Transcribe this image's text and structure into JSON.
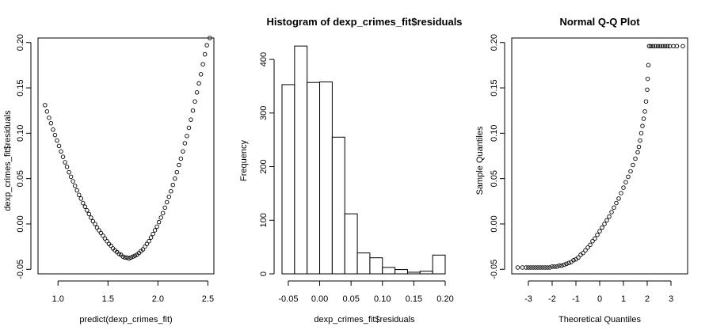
{
  "chart_data": [
    {
      "type": "scatter",
      "title": "",
      "xlabel": "predict(dexp_crimes_fit)",
      "ylabel": "dexp_crimes_fit$residuals",
      "xlim": [
        0.8,
        2.56
      ],
      "ylim": [
        -0.055,
        0.205
      ],
      "x_ticks": [
        1.0,
        1.5,
        2.0,
        2.5
      ],
      "x_tick_labels": [
        "1.0",
        "1.5",
        "2.0",
        "2.5"
      ],
      "y_ticks": [
        -0.05,
        0.0,
        0.05,
        0.1,
        0.15,
        0.2
      ],
      "y_tick_labels": [
        "-0.05",
        "0.00",
        "0.05",
        "0.10",
        "0.15",
        "0.20"
      ],
      "points": [
        [
          0.87,
          0.131
        ],
        [
          0.89,
          0.124
        ],
        [
          0.91,
          0.117
        ],
        [
          0.93,
          0.111
        ],
        [
          0.95,
          0.104
        ],
        [
          0.97,
          0.098
        ],
        [
          0.99,
          0.092
        ],
        [
          1.01,
          0.086
        ],
        [
          1.03,
          0.08
        ],
        [
          1.05,
          0.074
        ],
        [
          1.07,
          0.068
        ],
        [
          1.09,
          0.063
        ],
        [
          1.11,
          0.057
        ],
        [
          1.13,
          0.052
        ],
        [
          1.15,
          0.047
        ],
        [
          1.17,
          0.042
        ],
        [
          1.19,
          0.037
        ],
        [
          1.21,
          0.032
        ],
        [
          1.23,
          0.028
        ],
        [
          1.25,
          0.023
        ],
        [
          1.27,
          0.019
        ],
        [
          1.29,
          0.015
        ],
        [
          1.31,
          0.011
        ],
        [
          1.33,
          0.007
        ],
        [
          1.35,
          0.003
        ],
        [
          1.37,
          0.0
        ],
        [
          1.39,
          -0.004
        ],
        [
          1.41,
          -0.007
        ],
        [
          1.43,
          -0.01
        ],
        [
          1.45,
          -0.013
        ],
        [
          1.47,
          -0.016
        ],
        [
          1.49,
          -0.019
        ],
        [
          1.51,
          -0.022
        ],
        [
          1.53,
          -0.024
        ],
        [
          1.55,
          -0.027
        ],
        [
          1.57,
          -0.029
        ],
        [
          1.59,
          -0.031
        ],
        [
          1.61,
          -0.033
        ],
        [
          1.63,
          -0.034
        ],
        [
          1.65,
          -0.036
        ],
        [
          1.67,
          -0.037
        ],
        [
          1.69,
          -0.037
        ],
        [
          1.71,
          -0.038
        ],
        [
          1.73,
          -0.037
        ],
        [
          1.75,
          -0.036
        ],
        [
          1.77,
          -0.035
        ],
        [
          1.79,
          -0.034
        ],
        [
          1.81,
          -0.032
        ],
        [
          1.83,
          -0.03
        ],
        [
          1.85,
          -0.028
        ],
        [
          1.87,
          -0.025
        ],
        [
          1.89,
          -0.022
        ],
        [
          1.91,
          -0.019
        ],
        [
          1.93,
          -0.015
        ],
        [
          1.95,
          -0.011
        ],
        [
          1.97,
          -0.007
        ],
        [
          1.99,
          -0.003
        ],
        [
          2.01,
          0.002
        ],
        [
          2.03,
          0.007
        ],
        [
          2.05,
          0.012
        ],
        [
          2.07,
          0.018
        ],
        [
          2.09,
          0.024
        ],
        [
          2.11,
          0.03
        ],
        [
          2.13,
          0.036
        ],
        [
          2.15,
          0.043
        ],
        [
          2.17,
          0.05
        ],
        [
          2.19,
          0.057
        ],
        [
          2.21,
          0.065
        ],
        [
          2.23,
          0.072
        ],
        [
          2.25,
          0.08
        ],
        [
          2.27,
          0.089
        ],
        [
          2.29,
          0.097
        ],
        [
          2.31,
          0.106
        ],
        [
          2.33,
          0.115
        ],
        [
          2.35,
          0.125
        ],
        [
          2.37,
          0.135
        ],
        [
          2.39,
          0.145
        ],
        [
          2.41,
          0.155
        ],
        [
          2.43,
          0.165
        ],
        [
          2.45,
          0.176
        ],
        [
          2.47,
          0.187
        ],
        [
          2.49,
          0.197
        ],
        [
          2.52,
          0.205
        ]
      ]
    },
    {
      "type": "bar",
      "title": "Histogram of dexp_crimes_fit$residuals",
      "xlabel": "dexp_crimes_fit$residuals",
      "ylabel": "Frequency",
      "bin_edges": [
        -0.06,
        -0.04,
        -0.02,
        0.0,
        0.02,
        0.04,
        0.06,
        0.08,
        0.1,
        0.12,
        0.14,
        0.16,
        0.18,
        0.2
      ],
      "values": [
        353,
        425,
        357,
        358,
        255,
        112,
        39,
        30,
        12,
        8,
        3,
        5,
        35
      ],
      "ylim": [
        0,
        440
      ],
      "x_ticks": [
        -0.05,
        0.0,
        0.05,
        0.1,
        0.15,
        0.2
      ],
      "x_tick_labels": [
        "-0.05",
        "0.00",
        "0.05",
        "0.10",
        "0.15",
        "0.20"
      ],
      "y_ticks": [
        0,
        100,
        200,
        300,
        400
      ],
      "y_tick_labels": [
        "0",
        "100",
        "200",
        "300",
        "400"
      ]
    },
    {
      "type": "scatter",
      "title": "Normal Q-Q Plot",
      "xlabel": "Theoretical Quantiles",
      "ylabel": "Sample Quantiles",
      "xlim": [
        -3.7,
        3.7
      ],
      "ylim": [
        -0.055,
        0.205
      ],
      "x_ticks": [
        -3,
        -2,
        -1,
        0,
        1,
        2,
        3
      ],
      "x_tick_labels": [
        "-3",
        "-2",
        "-1",
        "0",
        "1",
        "2",
        "3"
      ],
      "y_ticks": [
        -0.05,
        0.0,
        0.05,
        0.1,
        0.15,
        0.2
      ],
      "y_tick_labels": [
        "-0.05",
        "0.00",
        "0.05",
        "0.10",
        "0.15",
        "0.20"
      ],
      "points": [
        [
          -3.45,
          -0.048
        ],
        [
          -3.25,
          -0.048
        ],
        [
          -3.1,
          -0.048
        ],
        [
          -3.0,
          -0.048
        ],
        [
          -2.9,
          -0.048
        ],
        [
          -2.8,
          -0.048
        ],
        [
          -2.7,
          -0.048
        ],
        [
          -2.6,
          -0.048
        ],
        [
          -2.5,
          -0.048
        ],
        [
          -2.4,
          -0.048
        ],
        [
          -2.3,
          -0.048
        ],
        [
          -2.2,
          -0.048
        ],
        [
          -2.1,
          -0.048
        ],
        [
          -2.0,
          -0.047
        ],
        [
          -1.9,
          -0.047
        ],
        [
          -1.8,
          -0.047
        ],
        [
          -1.7,
          -0.046
        ],
        [
          -1.6,
          -0.046
        ],
        [
          -1.5,
          -0.045
        ],
        [
          -1.4,
          -0.044
        ],
        [
          -1.3,
          -0.043
        ],
        [
          -1.2,
          -0.042
        ],
        [
          -1.1,
          -0.04
        ],
        [
          -1.0,
          -0.039
        ],
        [
          -0.9,
          -0.037
        ],
        [
          -0.8,
          -0.034
        ],
        [
          -0.7,
          -0.032
        ],
        [
          -0.6,
          -0.029
        ],
        [
          -0.5,
          -0.026
        ],
        [
          -0.4,
          -0.023
        ],
        [
          -0.3,
          -0.019
        ],
        [
          -0.2,
          -0.016
        ],
        [
          -0.1,
          -0.012
        ],
        [
          0.0,
          -0.008
        ],
        [
          0.1,
          -0.004
        ],
        [
          0.2,
          0.0
        ],
        [
          0.3,
          0.004
        ],
        [
          0.4,
          0.008
        ],
        [
          0.5,
          0.013
        ],
        [
          0.6,
          0.018
        ],
        [
          0.7,
          0.023
        ],
        [
          0.8,
          0.028
        ],
        [
          0.9,
          0.034
        ],
        [
          1.0,
          0.04
        ],
        [
          1.1,
          0.046
        ],
        [
          1.2,
          0.052
        ],
        [
          1.3,
          0.058
        ],
        [
          1.4,
          0.065
        ],
        [
          1.5,
          0.072
        ],
        [
          1.6,
          0.079
        ],
        [
          1.65,
          0.085
        ],
        [
          1.7,
          0.092
        ],
        [
          1.75,
          0.1
        ],
        [
          1.8,
          0.108
        ],
        [
          1.85,
          0.116
        ],
        [
          1.9,
          0.124
        ],
        [
          1.95,
          0.135
        ],
        [
          2.0,
          0.148
        ],
        [
          2.02,
          0.16
        ],
        [
          2.05,
          0.175
        ],
        [
          2.08,
          0.196
        ],
        [
          2.15,
          0.196
        ],
        [
          2.25,
          0.196
        ],
        [
          2.35,
          0.196
        ],
        [
          2.45,
          0.196
        ],
        [
          2.55,
          0.196
        ],
        [
          2.65,
          0.196
        ],
        [
          2.75,
          0.196
        ],
        [
          2.85,
          0.196
        ],
        [
          2.95,
          0.196
        ],
        [
          3.1,
          0.196
        ],
        [
          3.25,
          0.196
        ],
        [
          3.5,
          0.196
        ]
      ]
    }
  ]
}
